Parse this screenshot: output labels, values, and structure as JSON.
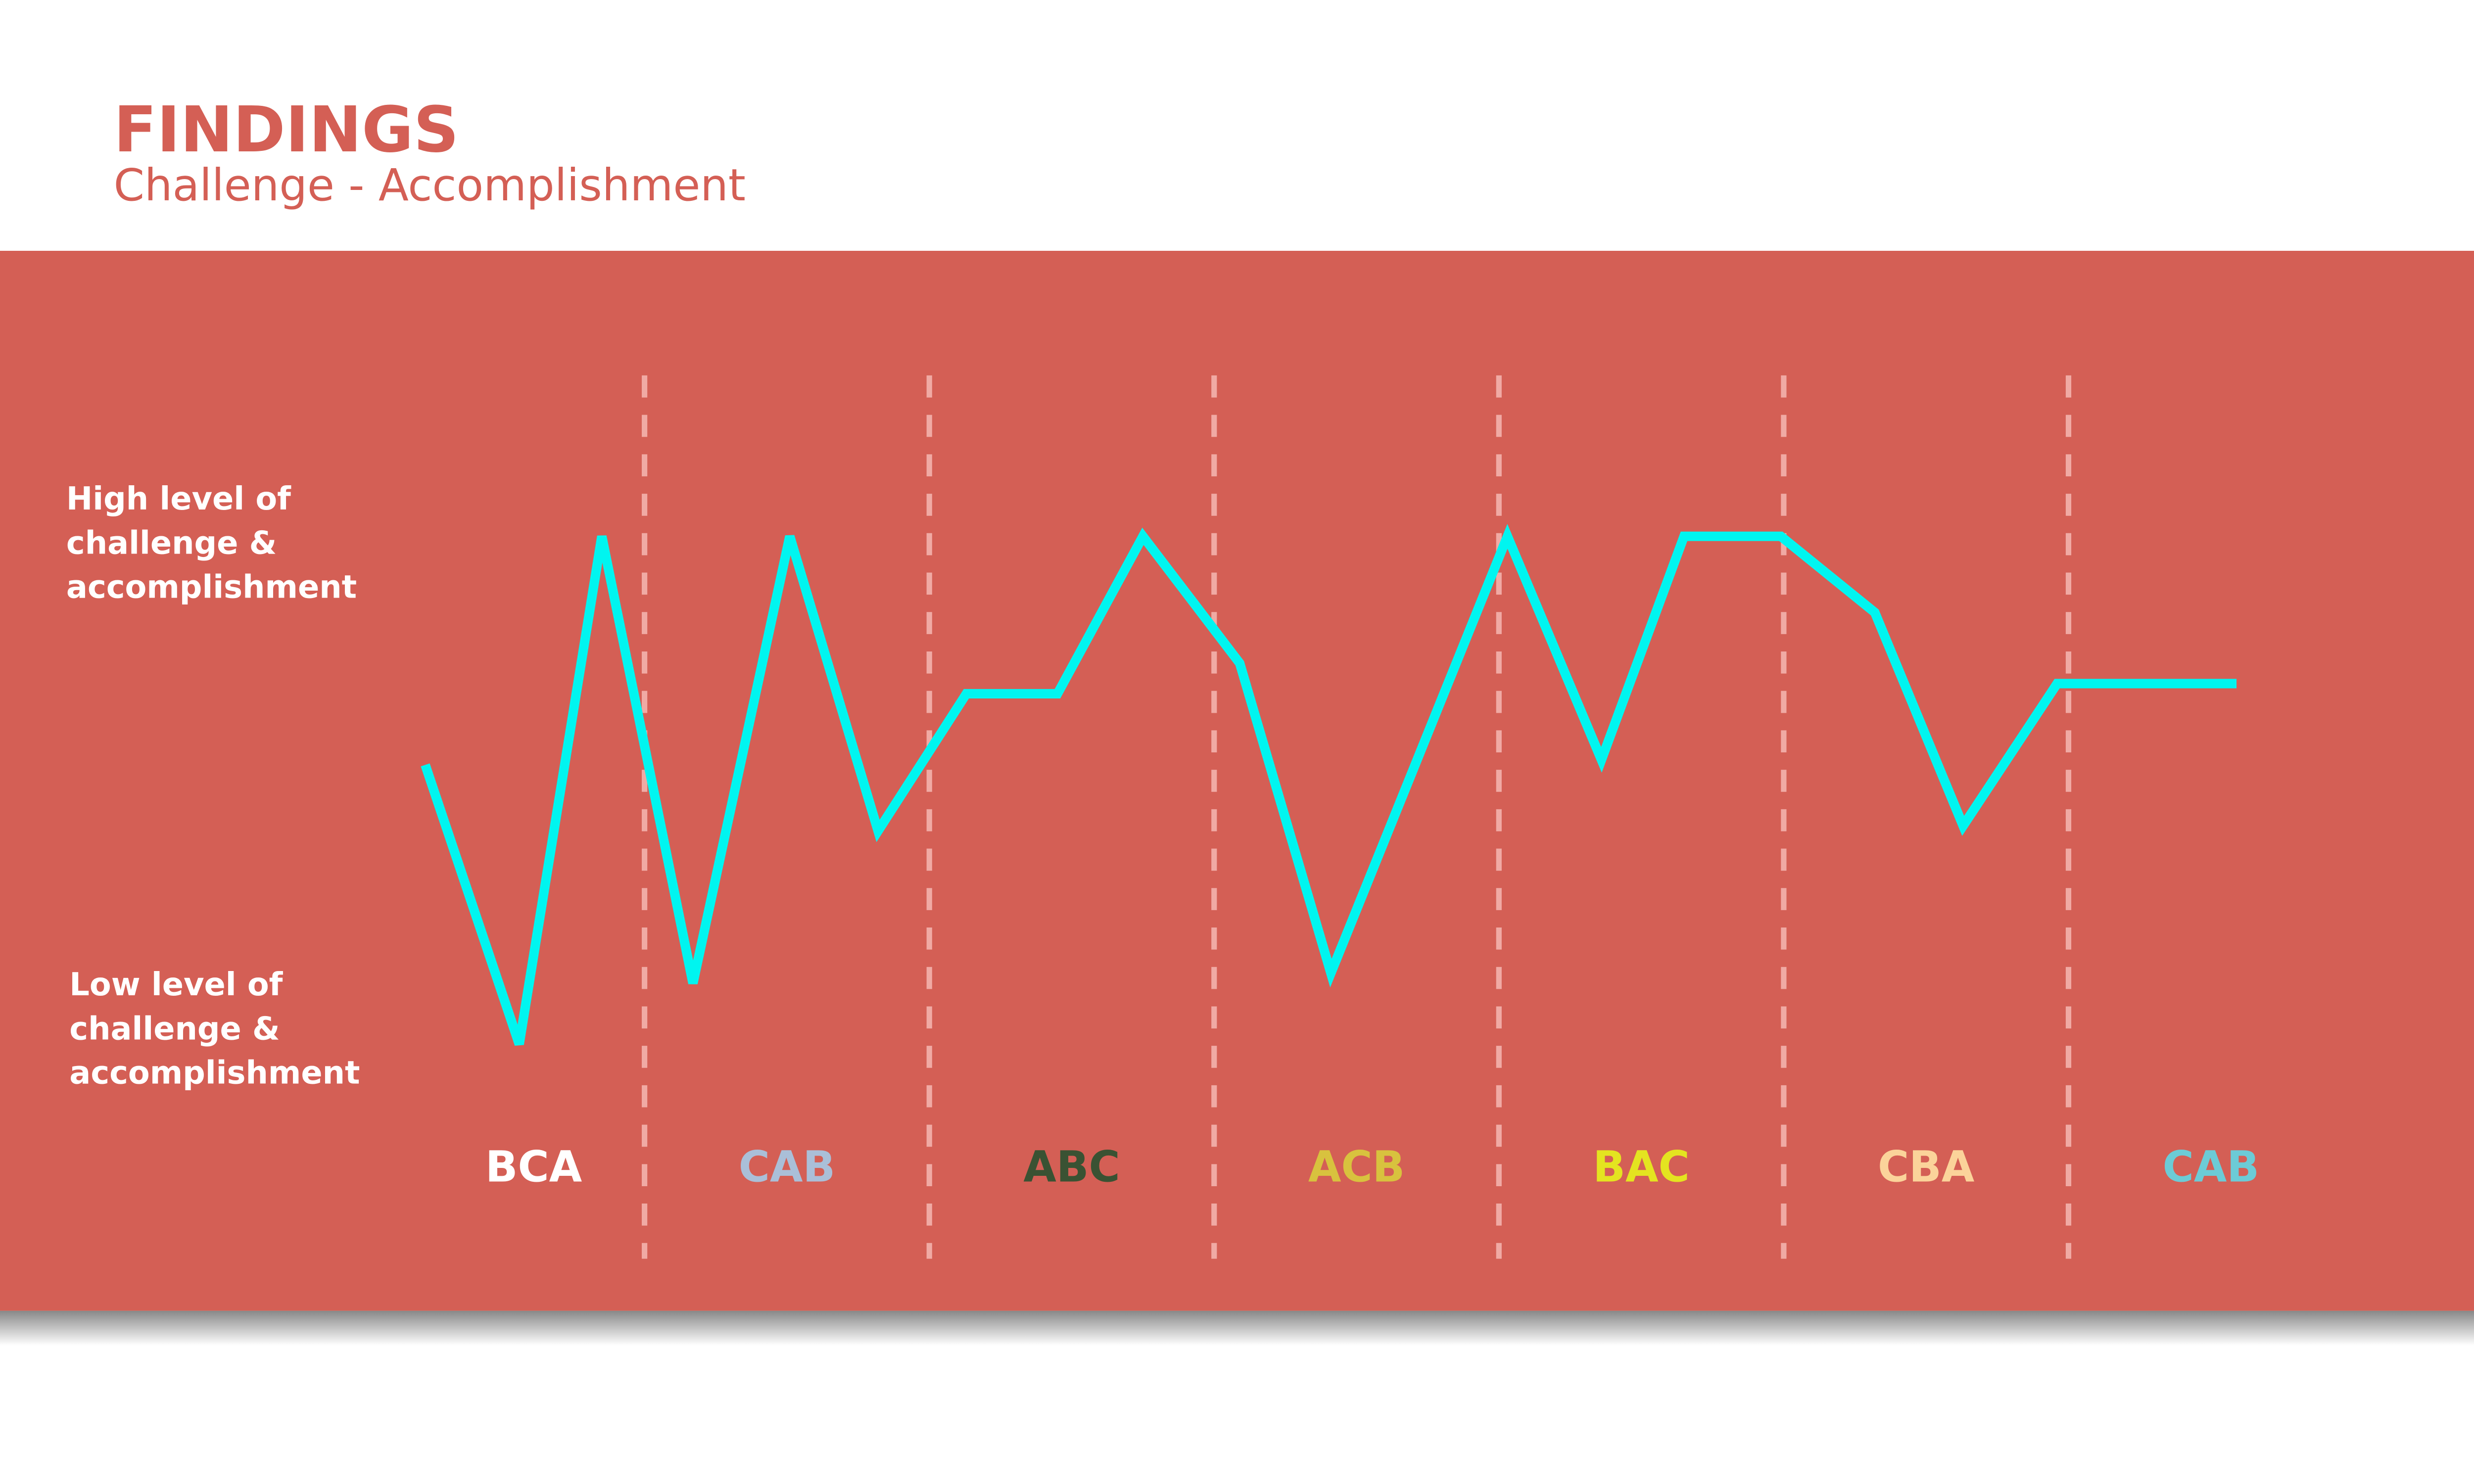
{
  "header": {
    "title": "FINDINGS",
    "subtitle": "Challenge - Accomplishment"
  },
  "colors": {
    "title": "#d45f55",
    "panel": "#d45f55",
    "line": "#00f5f0",
    "divider": "#f0aaa4"
  },
  "chart_data": {
    "type": "line",
    "title": "",
    "y_axis_labels": {
      "high": [
        "High level of",
        "challenge &",
        "accomplishment"
      ],
      "low": [
        "Low level of",
        "challenge &",
        "accomplishment"
      ]
    },
    "ylim": [
      0,
      100
    ],
    "grid": false,
    "segments": [
      {
        "label": "BCA",
        "color": "#ffffff"
      },
      {
        "label": "CAB",
        "color": "#aabfd8"
      },
      {
        "label": "ABC",
        "color": "#3a5233"
      },
      {
        "label": "ACB",
        "color": "#d8c23e"
      },
      {
        "label": "BAC",
        "color": "#e4e420"
      },
      {
        "label": "CBA",
        "color": "#fbd39a"
      },
      {
        "label": "CAB",
        "color": "#6ccbd6"
      }
    ],
    "points": [
      {
        "x": 0.23,
        "y": 55
      },
      {
        "x": 0.56,
        "y": 0
      },
      {
        "x": 0.85,
        "y": 100
      },
      {
        "x": 1.17,
        "y": 12
      },
      {
        "x": 1.51,
        "y": 100
      },
      {
        "x": 1.82,
        "y": 42
      },
      {
        "x": 2.13,
        "y": 69
      },
      {
        "x": 2.45,
        "y": 69
      },
      {
        "x": 2.75,
        "y": 100
      },
      {
        "x": 3.09,
        "y": 75
      },
      {
        "x": 3.41,
        "y": 14
      },
      {
        "x": 4.03,
        "y": 100
      },
      {
        "x": 4.36,
        "y": 56
      },
      {
        "x": 4.65,
        "y": 100
      },
      {
        "x": 4.99,
        "y": 100
      },
      {
        "x": 5.32,
        "y": 85
      },
      {
        "x": 5.63,
        "y": 43
      },
      {
        "x": 5.96,
        "y": 71
      },
      {
        "x": 6.59,
        "y": 71
      }
    ]
  }
}
